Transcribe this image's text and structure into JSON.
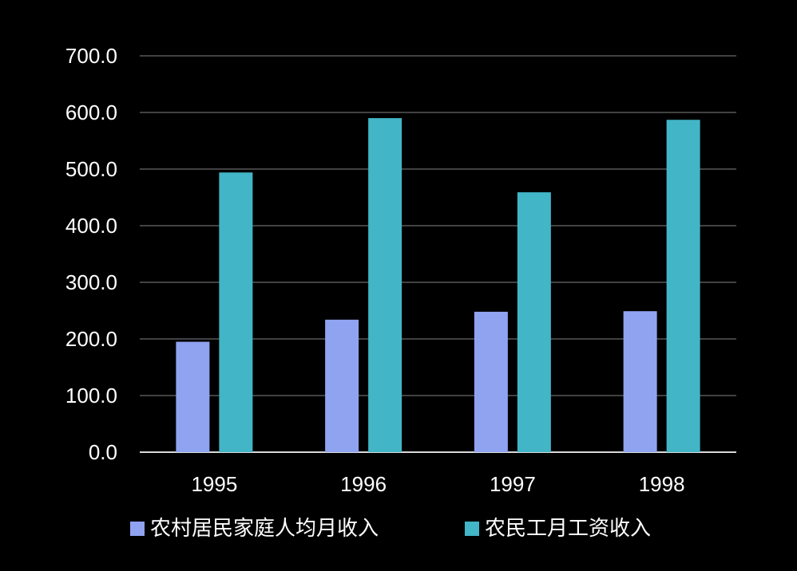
{
  "chart_data": {
    "type": "bar",
    "categories": [
      "1995",
      "1996",
      "1997",
      "1998"
    ],
    "series": [
      {
        "name": "农村居民家庭人均月收入",
        "values": [
          195.0,
          234.0,
          248.0,
          249.0
        ],
        "color": "#8fa3f1"
      },
      {
        "name": "农民工月工资收入",
        "values": [
          494.0,
          590.0,
          459.0,
          587.0
        ],
        "color": "#42b5c7"
      }
    ],
    "ylim": [
      0,
      700
    ],
    "yticks": [
      0,
      100,
      200,
      300,
      400,
      500,
      600,
      700
    ],
    "ytick_labels": [
      "0.0",
      "100.0",
      "200.0",
      "300.0",
      "400.0",
      "500.0",
      "600.0",
      "700.0"
    ],
    "grid": true,
    "legend_position": "bottom",
    "colors": {
      "background": "#000000",
      "gridline": "#595959",
      "axis": "#d9d9d9",
      "text": "#ffffff"
    }
  }
}
